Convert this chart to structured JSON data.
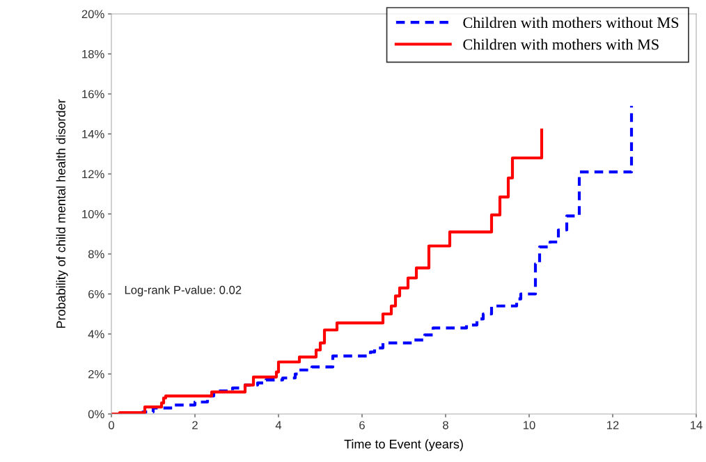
{
  "chart_data": {
    "type": "step",
    "xlabel": "Time to Event (years)",
    "ylabel": "Probability of child mental health disorder",
    "xlim": [
      0,
      14
    ],
    "xticks": [
      0,
      2,
      4,
      6,
      8,
      10,
      12,
      14
    ],
    "ylim": [
      0,
      20
    ],
    "yticks": [
      {
        "value": 0,
        "label": "0%"
      },
      {
        "value": 2,
        "label": "2%"
      },
      {
        "value": 4,
        "label": "4%"
      },
      {
        "value": 6,
        "label": "6%"
      },
      {
        "value": 8,
        "label": "8%"
      },
      {
        "value": 10,
        "label": "10%"
      },
      {
        "value": 12,
        "label": "12%"
      },
      {
        "value": 14,
        "label": "14%"
      },
      {
        "value": 16,
        "label": "16%"
      },
      {
        "value": 18,
        "label": "18%"
      },
      {
        "value": 20,
        "label": "20%"
      }
    ],
    "grid": false,
    "legend": "top right",
    "marker": "none",
    "annotations": [
      "Log-rank P-value: 0.02"
    ],
    "series": [
      {
        "name": "Children with mothers without MS",
        "color": "#0000ff",
        "line_style": "dashed",
        "x": [
          0,
          0.75,
          1.0,
          1.5,
          2.0,
          2.3,
          2.45,
          2.9,
          3.2,
          3.5,
          3.7,
          4.1,
          4.4,
          4.5,
          4.8,
          5.3,
          6.2,
          6.3,
          6.5,
          7.2,
          7.5,
          7.7,
          8.5,
          8.75,
          8.9,
          9.1,
          9.7,
          9.8,
          10.15,
          10.25,
          10.5,
          10.7,
          10.9,
          11.2,
          12.45
        ],
        "values": [
          0,
          0.1,
          0.3,
          0.45,
          0.6,
          0.9,
          1.15,
          1.3,
          1.45,
          1.55,
          1.7,
          1.8,
          2.0,
          2.2,
          2.35,
          2.9,
          3.1,
          3.3,
          3.55,
          3.7,
          3.95,
          4.3,
          4.45,
          4.75,
          5.0,
          5.4,
          5.75,
          6.0,
          7.5,
          8.35,
          8.6,
          9.2,
          9.9,
          12.1,
          15.4
        ]
      },
      {
        "name": "Children with mothers with MS",
        "color": "#ff0000",
        "line_style": "solid",
        "x": [
          0,
          0.2,
          0.8,
          1.2,
          1.25,
          1.3,
          2.4,
          3.2,
          3.4,
          3.95,
          4.0,
          4.5,
          4.9,
          5.0,
          5.1,
          5.4,
          6.5,
          6.7,
          6.8,
          6.9,
          7.1,
          7.3,
          7.6,
          8.1,
          9.1,
          9.3,
          9.5,
          9.6,
          10.3
        ],
        "values": [
          0,
          0.07,
          0.35,
          0.55,
          0.8,
          0.9,
          1.1,
          1.45,
          1.85,
          2.1,
          2.6,
          2.85,
          3.2,
          3.55,
          4.2,
          4.55,
          5.0,
          5.4,
          5.9,
          6.3,
          6.8,
          7.3,
          8.4,
          9.1,
          9.95,
          10.85,
          11.8,
          12.8,
          14.2
        ]
      }
    ]
  }
}
